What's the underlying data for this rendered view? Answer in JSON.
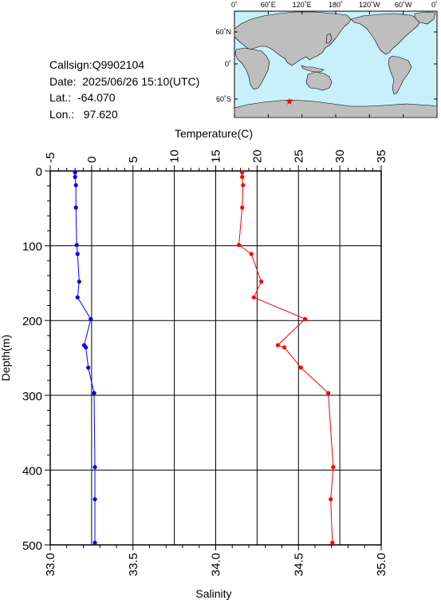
{
  "info": {
    "callsign": "Callsign:Q9902104",
    "date": "Date:  2025/06/26 15:10(UTC)",
    "lat": "Lat.:  -64.070",
    "lon": "Lon.:   97.620"
  },
  "map": {
    "lon_labels": [
      "0˚",
      "60˚E",
      "120˚E",
      "180˚",
      "120˚W",
      "60˚W",
      "0˚"
    ],
    "lat_labels": [
      "60˚N",
      "0˚",
      "60˚S"
    ],
    "ocean_color": "#c8f0fa",
    "land_color": "#bebebe",
    "marker_icon": "star-icon",
    "marker_color": "#ff0000",
    "marker_lat": -64.07,
    "marker_lon": 97.62
  },
  "chart_data": {
    "type": "line",
    "title": "",
    "top_axis": {
      "label": "Temperature(C)",
      "range": [
        -5,
        35
      ],
      "ticks": [
        "-5",
        "0",
        "5",
        "10",
        "15",
        "20",
        "25",
        "30",
        "35"
      ]
    },
    "bottom_axis": {
      "label": "Salinity",
      "range": [
        33.0,
        35.0
      ],
      "ticks": [
        "33.0",
        "33.5",
        "34.0",
        "34.5",
        "35.0"
      ]
    },
    "y_axis": {
      "label": "Depth(m)",
      "range": [
        0,
        500
      ],
      "inverted": true,
      "ticks": [
        "0",
        "100",
        "200",
        "300",
        "400",
        "500"
      ]
    },
    "grid": true,
    "series": [
      {
        "name": "",
        "axis": "temperature",
        "color": "#ff0000",
        "points": [
          {
            "depth": 2,
            "value": 18.2
          },
          {
            "depth": 8,
            "value": 18.2
          },
          {
            "depth": 19,
            "value": 18.3
          },
          {
            "depth": 49,
            "value": 18.2
          },
          {
            "depth": 99,
            "value": 17.8
          },
          {
            "depth": 111,
            "value": 19.3
          },
          {
            "depth": 148,
            "value": 20.5
          },
          {
            "depth": 169,
            "value": 19.6
          },
          {
            "depth": 198,
            "value": 25.8
          },
          {
            "depth": 233,
            "value": 22.5
          },
          {
            "depth": 236,
            "value": 23.3
          },
          {
            "depth": 263,
            "value": 25.3
          },
          {
            "depth": 297,
            "value": 28.6
          },
          {
            "depth": 396,
            "value": 29.2
          },
          {
            "depth": 439,
            "value": 28.9
          },
          {
            "depth": 497,
            "value": 29.1
          }
        ]
      },
      {
        "name": "",
        "axis": "salinity",
        "color": "#0000ff",
        "points": [
          {
            "depth": 2,
            "value": 33.15
          },
          {
            "depth": 8,
            "value": 33.15
          },
          {
            "depth": 19,
            "value": 33.155
          },
          {
            "depth": 49,
            "value": 33.155
          },
          {
            "depth": 99,
            "value": 33.16
          },
          {
            "depth": 111,
            "value": 33.165
          },
          {
            "depth": 148,
            "value": 33.175
          },
          {
            "depth": 169,
            "value": 33.165
          },
          {
            "depth": 198,
            "value": 33.245
          },
          {
            "depth": 233,
            "value": 33.205
          },
          {
            "depth": 236,
            "value": 33.215
          },
          {
            "depth": 263,
            "value": 33.23
          },
          {
            "depth": 297,
            "value": 33.265
          },
          {
            "depth": 396,
            "value": 33.27
          },
          {
            "depth": 439,
            "value": 33.27
          },
          {
            "depth": 497,
            "value": 33.27
          }
        ]
      }
    ]
  }
}
